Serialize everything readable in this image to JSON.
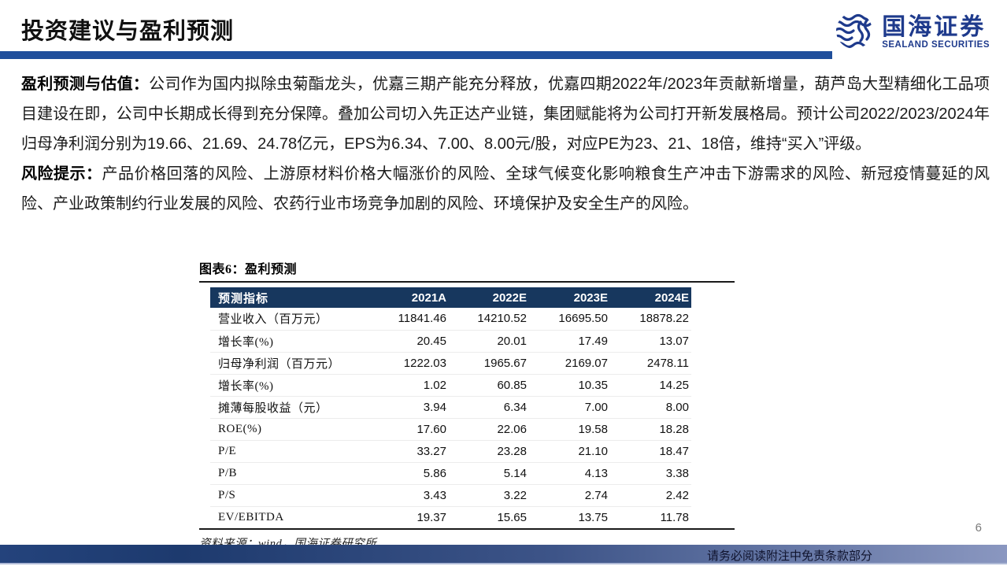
{
  "header": {
    "title": "投资建议与盈利预测",
    "logo": {
      "cn": "国海证券",
      "en": "SEALAND SECURITIES"
    }
  },
  "paragraphs": {
    "profit": {
      "lead": "盈利预测与估值：",
      "body": "公司作为国内拟除虫菊酯龙头，优嘉三期产能充分释放，优嘉四期2022年/2023年贡献新增量，葫芦岛大型精细化工品项目建设在即，公司中长期成长得到充分保障。叠加公司切入先正达产业链，集团赋能将为公司打开新发展格局。预计公司2022/2023/2024年归母净利润分别为19.66、21.69、24.78亿元，EPS为6.34、7.00、8.00元/股，对应PE为23、21、18倍，维持“买入”评级。"
    },
    "risk": {
      "lead": "风险提示：",
      "body": "产品价格回落的风险、上游原材料价格大幅涨价的风险、全球气候变化影响粮食生产冲击下游需求的风险、新冠疫情蔓延的风险、产业政策制约行业发展的风险、农药行业市场竞争加剧的风险、环境保护及安全生产的风险。"
    }
  },
  "figure": {
    "caption": "图表6：盈利预测",
    "source": "资料来源：wind，国海证券研究所"
  },
  "chart_data": {
    "type": "table",
    "columns": [
      "预测指标",
      "2021A",
      "2022E",
      "2023E",
      "2024E"
    ],
    "rows": [
      [
        "营业收入（百万元）",
        "11841.46",
        "14210.52",
        "16695.50",
        "18878.22"
      ],
      [
        "增长率(%)",
        "20.45",
        "20.01",
        "17.49",
        "13.07"
      ],
      [
        "归母净利润（百万元）",
        "1222.03",
        "1965.67",
        "2169.07",
        "2478.11"
      ],
      [
        "增长率(%)",
        "1.02",
        "60.85",
        "10.35",
        "14.25"
      ],
      [
        "摊薄每股收益（元）",
        "3.94",
        "6.34",
        "7.00",
        "8.00"
      ],
      [
        "ROE(%)",
        "17.60",
        "22.06",
        "19.58",
        "18.28"
      ],
      [
        "P/E",
        "33.27",
        "23.28",
        "21.10",
        "18.47"
      ],
      [
        "P/B",
        "5.86",
        "5.14",
        "4.13",
        "3.38"
      ],
      [
        "P/S",
        "3.43",
        "3.22",
        "2.74",
        "2.42"
      ],
      [
        "EV/EBITDA",
        "19.37",
        "15.65",
        "13.75",
        "11.78"
      ]
    ]
  },
  "footer": {
    "page_number": "6",
    "disclaimer": "请务必阅读附注中免责条款部分"
  },
  "colors": {
    "accent_bar": "#1F4E9B",
    "table_header_bg": "#17375E",
    "table_header_text": "#FFFFFF",
    "logo_blue": "#1E3A8C",
    "footer_gradient_left": "#1D3A6E",
    "footer_gradient_right": "#8A97C0"
  }
}
